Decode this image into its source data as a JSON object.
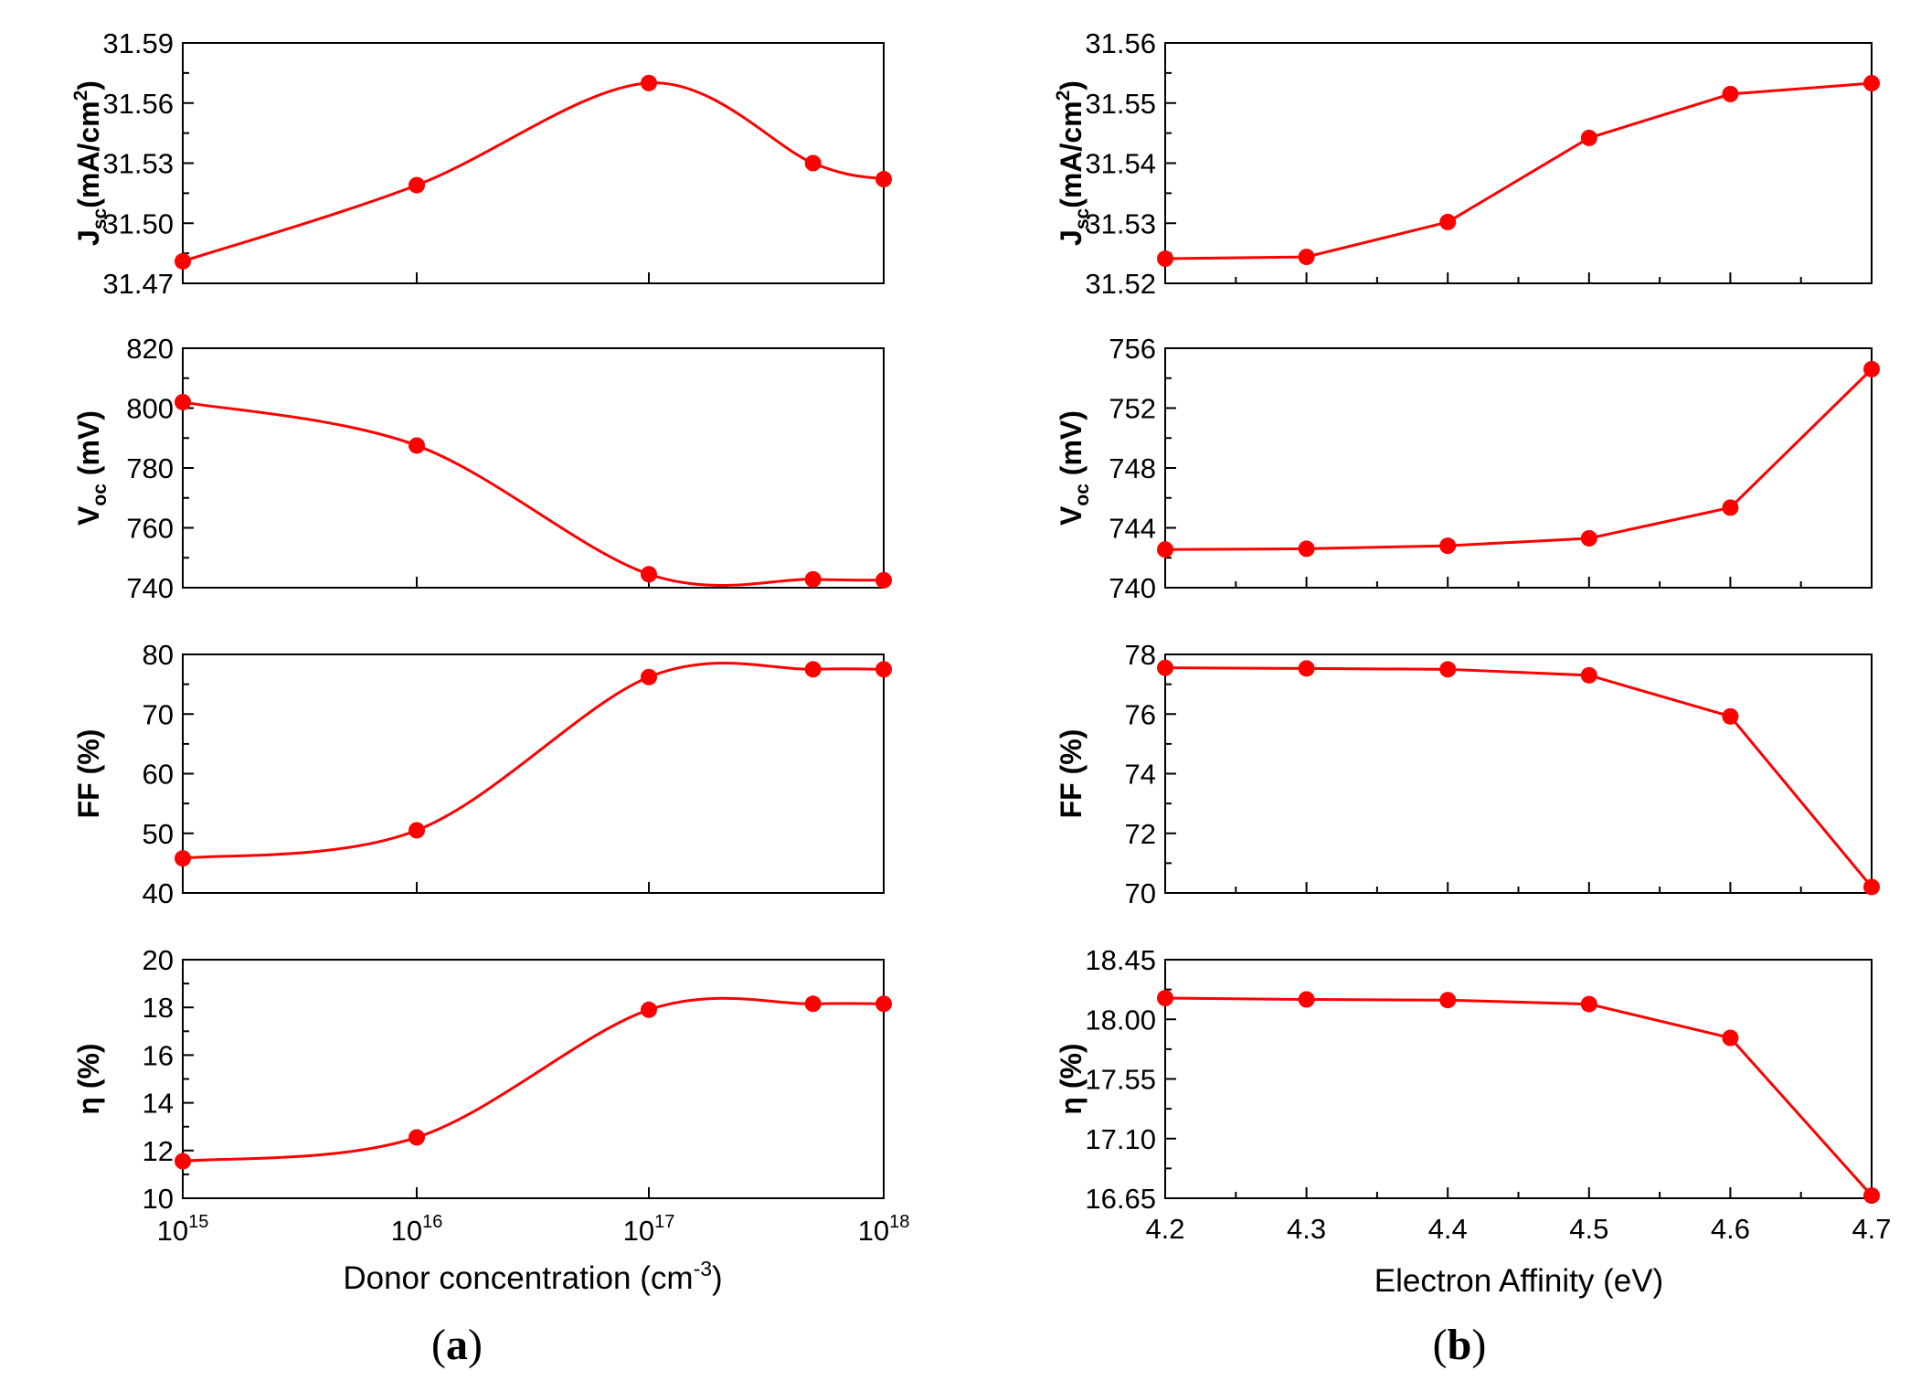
{
  "figure": {
    "panel_labels": [
      "a",
      "b"
    ],
    "xaxes": [
      {
        "label": "Donor concentration (cm",
        "sup": "-3",
        "suffix": ")"
      },
      {
        "label": "Electron Affinity (eV)"
      }
    ]
  },
  "colors": {
    "series": "#ff0000",
    "axis": "#000000"
  },
  "chart_data": [
    {
      "type": "line",
      "id": "a-jsc",
      "xscale": "log10",
      "x": [
        1000000000000000.0,
        1e+16,
        1e+17,
        5e+17,
        1e+18
      ],
      "y": [
        31.481,
        31.519,
        31.57,
        31.53,
        31.522
      ],
      "ylim": [
        31.47,
        31.59
      ],
      "yticks": [
        "31.47",
        "31.50",
        "31.53",
        "31.56",
        "31.59"
      ],
      "ylabel": {
        "main": "J",
        "sub": "sc",
        "rest": "(mA/cm",
        "sup": "2",
        "end": ")"
      },
      "smooth": true
    },
    {
      "type": "line",
      "id": "a-voc",
      "xscale": "log10",
      "x": [
        1000000000000000.0,
        1e+16,
        1e+17,
        5e+17,
        1e+18
      ],
      "y": [
        802,
        787.5,
        744.5,
        742.8,
        742.5
      ],
      "ylim": [
        740,
        820
      ],
      "yticks": [
        "740",
        "760",
        "780",
        "800",
        "820"
      ],
      "ylabel": {
        "main": "V",
        "sub": "oc",
        "rest": " (mV)"
      },
      "smooth": true
    },
    {
      "type": "line",
      "id": "a-ff",
      "xscale": "log10",
      "x": [
        1000000000000000.0,
        1e+16,
        1e+17,
        5e+17,
        1e+18
      ],
      "y": [
        45.8,
        50.5,
        76.2,
        77.5,
        77.5
      ],
      "ylim": [
        40,
        80
      ],
      "yticks": [
        "40",
        "50",
        "60",
        "70",
        "80"
      ],
      "ylabel": {
        "main": "FF (%)"
      },
      "smooth": true
    },
    {
      "type": "line",
      "id": "a-eta",
      "xscale": "log10",
      "x": [
        1000000000000000.0,
        1e+16,
        1e+17,
        5e+17,
        1e+18
      ],
      "y": [
        11.55,
        12.55,
        17.9,
        18.15,
        18.15
      ],
      "ylim": [
        10,
        20
      ],
      "yticks": [
        "10",
        "12",
        "14",
        "16",
        "18",
        "20"
      ],
      "ylabel": {
        "main": "η (%)"
      },
      "xticks": [
        {
          "base": "10",
          "exp": "15"
        },
        {
          "base": "10",
          "exp": "16"
        },
        {
          "base": "10",
          "exp": "17"
        },
        {
          "base": "10",
          "exp": "18"
        }
      ],
      "smooth": true
    },
    {
      "type": "line",
      "id": "b-jsc",
      "xscale": "linear",
      "x": [
        4.2,
        4.3,
        4.4,
        4.5,
        4.6,
        4.7
      ],
      "y": [
        31.5241,
        31.5244,
        31.5302,
        31.5442,
        31.5515,
        31.5533
      ],
      "ylim": [
        31.52,
        31.56
      ],
      "yticks": [
        "31.52",
        "31.53",
        "31.54",
        "31.55",
        "31.56"
      ],
      "ylabel": {
        "main": "J",
        "sub": "sc",
        "rest": "(mA/cm",
        "sup": "2",
        "end": ")"
      },
      "smooth": false
    },
    {
      "type": "line",
      "id": "b-voc",
      "xscale": "linear",
      "x": [
        4.2,
        4.3,
        4.4,
        4.5,
        4.6,
        4.7
      ],
      "y": [
        742.55,
        742.6,
        742.8,
        743.3,
        745.35,
        754.6
      ],
      "ylim": [
        740,
        756
      ],
      "yticks": [
        "740",
        "744",
        "748",
        "752",
        "756"
      ],
      "ylabel": {
        "main": "V",
        "sub": "oc",
        "rest": " (mV)"
      },
      "smooth": false
    },
    {
      "type": "line",
      "id": "b-ff",
      "xscale": "linear",
      "x": [
        4.2,
        4.3,
        4.4,
        4.5,
        4.6,
        4.7
      ],
      "y": [
        77.55,
        77.53,
        77.5,
        77.3,
        75.92,
        70.2
      ],
      "ylim": [
        70,
        78
      ],
      "yticks": [
        "70",
        "72",
        "74",
        "76",
        "78"
      ],
      "ylabel": {
        "main": "FF (%)"
      },
      "smooth": false
    },
    {
      "type": "line",
      "id": "b-eta",
      "xscale": "linear",
      "x": [
        4.2,
        4.3,
        4.4,
        4.5,
        4.6,
        4.7
      ],
      "y": [
        18.16,
        18.15,
        18.145,
        18.115,
        17.86,
        16.67
      ],
      "ylim": [
        16.65,
        18.45
      ],
      "yticks": [
        "16.65",
        "17.10",
        "17.55",
        "18.00",
        "18.45"
      ],
      "ylabel": {
        "main": "η (%)"
      },
      "xticks": [
        "4.2",
        "4.3",
        "4.4",
        "4.5",
        "4.6",
        "4.7"
      ],
      "smooth": false
    }
  ]
}
